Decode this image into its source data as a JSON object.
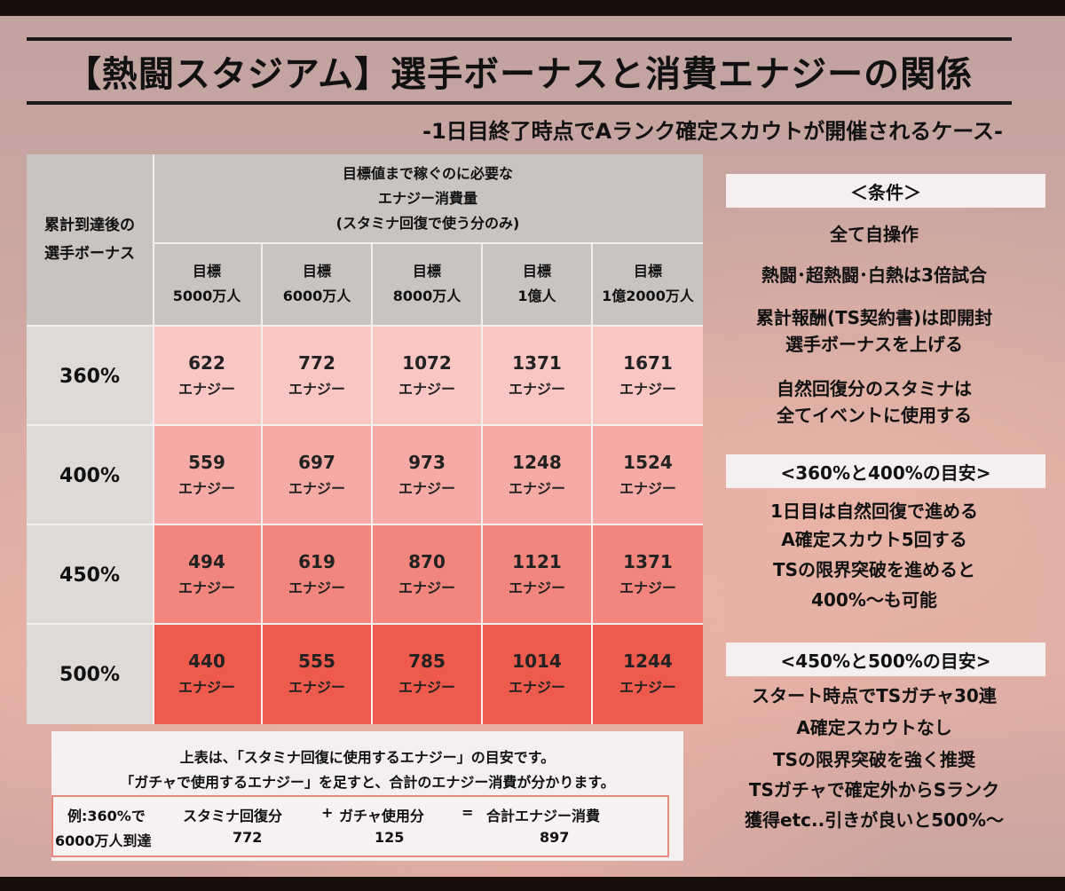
{
  "title": "【熱闘スタジアム】選手ボーナスと消費エナジーの関係",
  "subtitle": "-1日目終了時点でAランク確定スカウトが開催されるケース-",
  "table": {
    "corner_label_line1": "累計到達後の",
    "corner_label_line2": "選手ボーナス",
    "group_header_line1": "目標値まで稼ぐのに必要な",
    "group_header_line2": "エナジー消費量",
    "group_header_line3": "(スタミナ回復で使う分のみ)",
    "columns": [
      {
        "line1": "目標",
        "line2": "5000万人"
      },
      {
        "line1": "目標",
        "line2": "6000万人"
      },
      {
        "line1": "目標",
        "line2": "8000万人"
      },
      {
        "line1": "目標",
        "line2": "1億人"
      },
      {
        "line1": "目標",
        "line2": "1億2000万人"
      }
    ],
    "unit": "エナジー",
    "rows": [
      {
        "label": "360%",
        "color": "#f9c6c4",
        "values": [
          "622",
          "772",
          "1072",
          "1371",
          "1671"
        ]
      },
      {
        "label": "400%",
        "color": "#f6aaa6",
        "values": [
          "559",
          "697",
          "973",
          "1248",
          "1524"
        ]
      },
      {
        "label": "450%",
        "color": "#f2857d",
        "values": [
          "494",
          "619",
          "870",
          "1121",
          "1371"
        ]
      },
      {
        "label": "500%",
        "color": "#ee5a4c",
        "values": [
          "440",
          "555",
          "785",
          "1014",
          "1244"
        ]
      }
    ]
  },
  "note": {
    "line1": "上表は、「スタミナ回復に使用するエナジー」の目安です。",
    "line2": "「ガチャで使用するエナジー」を足すと、合計のエナジー消費が分かります。",
    "example": {
      "label_line1": "例:360%で",
      "label_line2": "6000万人到達",
      "stamina_header": "スタミナ回復分",
      "plus": "+",
      "gacha_header": "ガチャ使用分",
      "equals": "=",
      "total_header": "合計エナジー消費",
      "stamina_value": "772",
      "gacha_value": "125",
      "total_value": "897"
    }
  },
  "panel": {
    "conditions_header": "＜条件＞",
    "conditions": [
      "全て自操作",
      "熱闘･超熱闘･白熱は3倍試合",
      "累計報酬(TS契約書)は即開封",
      "選手ボーナスを上げる",
      "自然回復分のスタミナは",
      "全てイベントに使用する"
    ],
    "guide1_header": "<360%と400%の目安>",
    "guide1": [
      "1日目は自然回復で進める",
      "A確定スカウト5回する",
      "TSの限界突破を進めると",
      "400%〜も可能"
    ],
    "guide2_header": "<450%と500%の目安>",
    "guide2": [
      "スタート時点でTSガチャ30連",
      "A確定スカウトなし",
      "TSの限界突破を強く推奨",
      "TSガチャで確定外からSランク",
      "獲得etc..引きが良いと500%〜"
    ]
  }
}
